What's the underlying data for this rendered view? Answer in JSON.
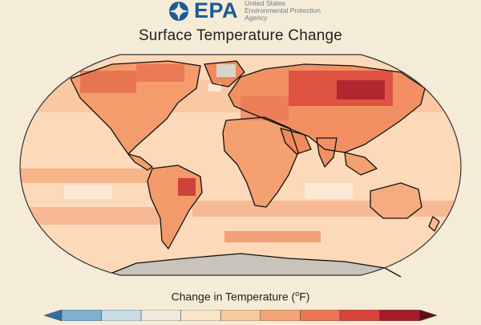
{
  "header": {
    "logo_text": "EPA",
    "agency_lines": [
      "United States",
      "Environmental Protection",
      "Agency"
    ]
  },
  "title": "Surface Temperature Change",
  "legend": {
    "title_prefix": "Change in Temperature (",
    "title_degree": "o",
    "title_suffix": "F)",
    "bins": [
      {
        "color": "#2f6fa3"
      },
      {
        "color": "#7fb0cf"
      },
      {
        "color": "#c9dbe6"
      },
      {
        "color": "#efeadb"
      },
      {
        "color": "#fbe6c8"
      },
      {
        "color": "#f8c99a"
      },
      {
        "color": "#f3a477"
      },
      {
        "color": "#ea7654"
      },
      {
        "color": "#d8443a"
      },
      {
        "color": "#a51d2a"
      },
      {
        "color": "#5e0d1a"
      }
    ]
  },
  "colors": {
    "ocean_base": "#fbd9b9",
    "land_base": "#f6a173",
    "no_data": "#c8c4bc",
    "coastline": "#111111"
  }
}
